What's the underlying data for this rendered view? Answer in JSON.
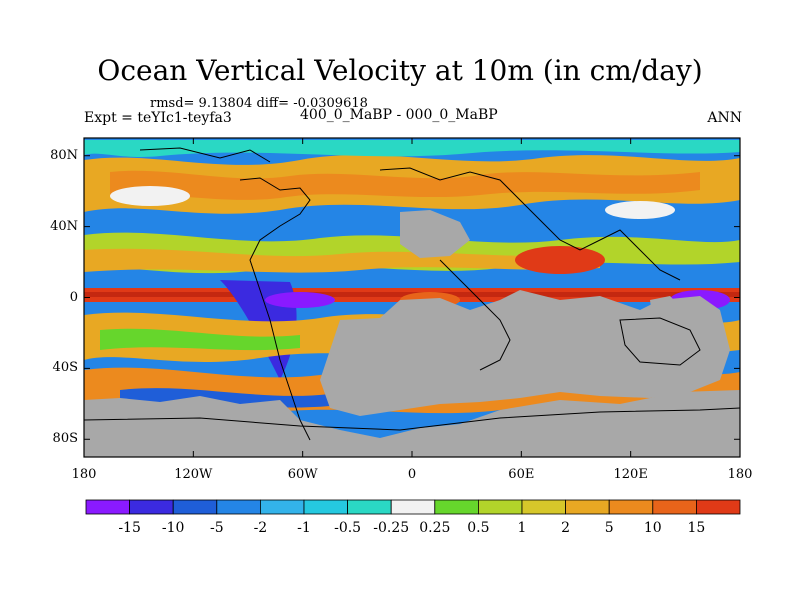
{
  "title": "Ocean Vertical Velocity at 10m (in cm/day)",
  "stats": "rmsd= 9.13804 diff= -0.0309618",
  "expt": "Expt = teYIc1-teyfa3",
  "cases": "400_0_MaBP - 000_0_MaBP",
  "season": "ANN",
  "map": {
    "lat_ticks": [
      "80N",
      "40N",
      "0",
      "40S",
      "80S"
    ],
    "lon_ticks": [
      "180",
      "120W",
      "60W",
      "0",
      "60E",
      "120E",
      "180"
    ],
    "land_color": "#a8a8a8",
    "lat_range": [
      -90,
      90
    ],
    "lon_range": [
      -180,
      180
    ]
  },
  "colorbar": {
    "colors": [
      "#8a1aff",
      "#3b2ae0",
      "#1f5ed8",
      "#2485e6",
      "#33b3ea",
      "#25c9e0",
      "#2ad8c4",
      "#f2f2f2",
      "#66d62c",
      "#b2d42a",
      "#d6c72a",
      "#e8a823",
      "#ec8a1e",
      "#e8641a",
      "#e03a17"
    ],
    "labels": [
      "-15",
      "-10",
      "-5",
      "-2",
      "-1",
      "-0.5",
      "-0.25",
      "0.25",
      "0.5",
      "1",
      "2",
      "5",
      "10",
      "15"
    ]
  }
}
